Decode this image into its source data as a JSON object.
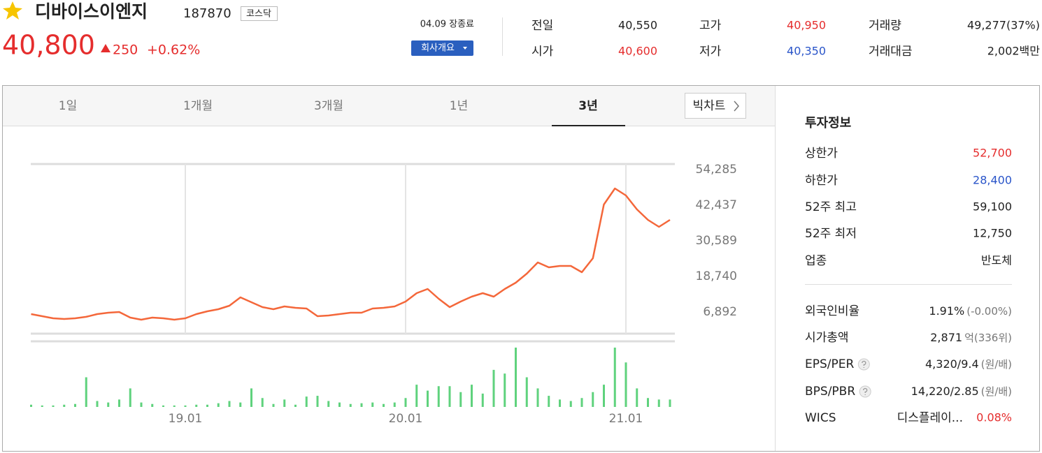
{
  "header": {
    "name": "디바이스이엔지",
    "code": "187870",
    "market": "코스닥",
    "price": "40,800",
    "change": "250",
    "change_pct": "+0.62%",
    "status": "04.09 장종료",
    "button": "회사개요"
  },
  "quote": [
    {
      "label": "전일",
      "value": "40,550"
    },
    {
      "label": "고가",
      "value": "40,950"
    },
    {
      "label": "거래량",
      "value": "49,277(37%)"
    },
    {
      "label": "시가",
      "value": "40,600"
    },
    {
      "label": "저가",
      "value": "40,350"
    },
    {
      "label": "거래대금",
      "value": "2,002백만"
    }
  ],
  "tabs": [
    "1일",
    "1개월",
    "3개월",
    "1년",
    "3년"
  ],
  "active_tab": 4,
  "big_chart": "빅차트",
  "chart_data": {
    "type": "line",
    "categories": [
      null,
      null,
      null,
      null,
      null,
      null,
      null,
      null,
      null,
      null,
      null,
      null,
      null,
      null,
      "19.01",
      null,
      null,
      null,
      null,
      null,
      null,
      null,
      null,
      null,
      null,
      null,
      null,
      null,
      null,
      null,
      null,
      null,
      null,
      null,
      "20.01",
      null,
      null,
      null,
      null,
      null,
      null,
      null,
      null,
      null,
      null,
      null,
      null,
      null,
      null,
      null,
      null,
      null,
      null,
      null,
      "21.01",
      null,
      null,
      null,
      null
    ],
    "series": [
      {
        "color": "#f4673a",
        "values": [
          6200,
          5500,
          4800,
          4570,
          4800,
          5300,
          6200,
          6660,
          6900,
          5030,
          4340,
          5030,
          4800,
          4340,
          4800,
          6200,
          7120,
          7820,
          8980,
          11770,
          10140,
          8520,
          7820,
          8750,
          8290,
          8050,
          5500,
          5730,
          6200,
          6660,
          6660,
          8050,
          8290,
          8750,
          10380,
          13160,
          14560,
          11300,
          8520,
          10380,
          12000,
          13160,
          12000,
          14560,
          16650,
          19670,
          23380,
          21760,
          22220,
          22220,
          20130,
          24780,
          42670,
          48010,
          45690,
          41040,
          37560,
          35230,
          37560
        ]
      }
    ],
    "volume": {
      "color": "#5fd27d",
      "values": [
        3,
        2,
        2,
        3,
        4,
        40,
        8,
        6,
        10,
        25,
        6,
        4,
        2,
        2,
        2,
        3,
        3,
        5,
        8,
        6,
        25,
        12,
        4,
        10,
        3,
        14,
        15,
        8,
        6,
        4,
        5,
        6,
        4,
        6,
        12,
        30,
        22,
        28,
        28,
        20,
        30,
        18,
        50,
        45,
        80,
        40,
        25,
        15,
        10,
        8,
        12,
        20,
        30,
        80,
        60,
        25,
        12,
        10,
        10
      ]
    },
    "ylim": [
      -310,
      56140
    ],
    "yticks": [
      {
        "value": 54285,
        "label": "54,285"
      },
      {
        "value": 42437,
        "label": "42,437"
      },
      {
        "value": 30589,
        "label": "30,589"
      },
      {
        "value": 18740,
        "label": "18,740"
      },
      {
        "value": 6892,
        "label": "6,892"
      }
    ]
  },
  "info": {
    "title": "투자정보",
    "rows": [
      {
        "label": "상한가",
        "value": "52,700"
      },
      {
        "label": "하한가",
        "value": "28,400"
      },
      {
        "label": "52주 최고",
        "value": "59,100"
      },
      {
        "label": "52주 최저",
        "value": "12,750"
      },
      {
        "label": "업종",
        "value": "반도체"
      }
    ],
    "rows2": [
      {
        "label": "외국인비율",
        "value": "1.91%",
        "sub": "(-0.00%)"
      },
      {
        "label": "시가총액",
        "value": "2,871",
        "sub": "억(336위)"
      },
      {
        "label": "EPS/PER",
        "value": "4,320/9.4",
        "sub": "(원/배)"
      },
      {
        "label": "BPS/PBR",
        "value": "14,220/2.85",
        "sub": "(원/배)"
      },
      {
        "label": "WICS",
        "value": "디스플레이...",
        "sub": "0.08%"
      }
    ]
  }
}
